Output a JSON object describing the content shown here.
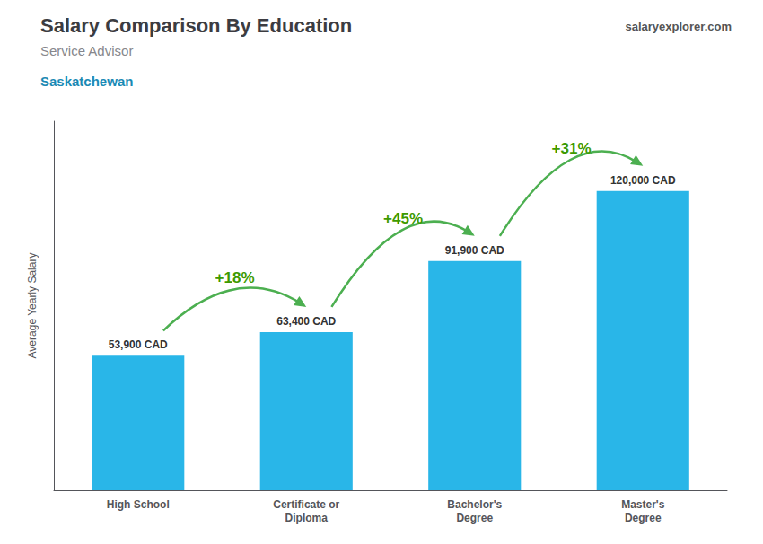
{
  "chart_data": {
    "type": "bar",
    "title": "Salary Comparison By Education",
    "subtitle": "Service Advisor",
    "annotations": [
      "Saskatchewan",
      "salaryexplorer.com"
    ],
    "change_labels": [
      "+18%",
      "+45%",
      "+31%"
    ],
    "ylabel": "Average Yearly Salary",
    "categories": [
      "High School",
      "Certificate or\nDiploma",
      "Bachelor's\nDegree",
      "Master's\nDegree"
    ],
    "values": [
      53900,
      63400,
      91900,
      120000
    ],
    "value_labels": [
      "53,900 CAD",
      "63,400 CAD",
      "91,900 CAD",
      "120,000 CAD"
    ],
    "data_labels": true,
    "color": "#29b6e8",
    "ylim": [
      0,
      148000
    ],
    "grid": false,
    "tick_labels": "x"
  }
}
